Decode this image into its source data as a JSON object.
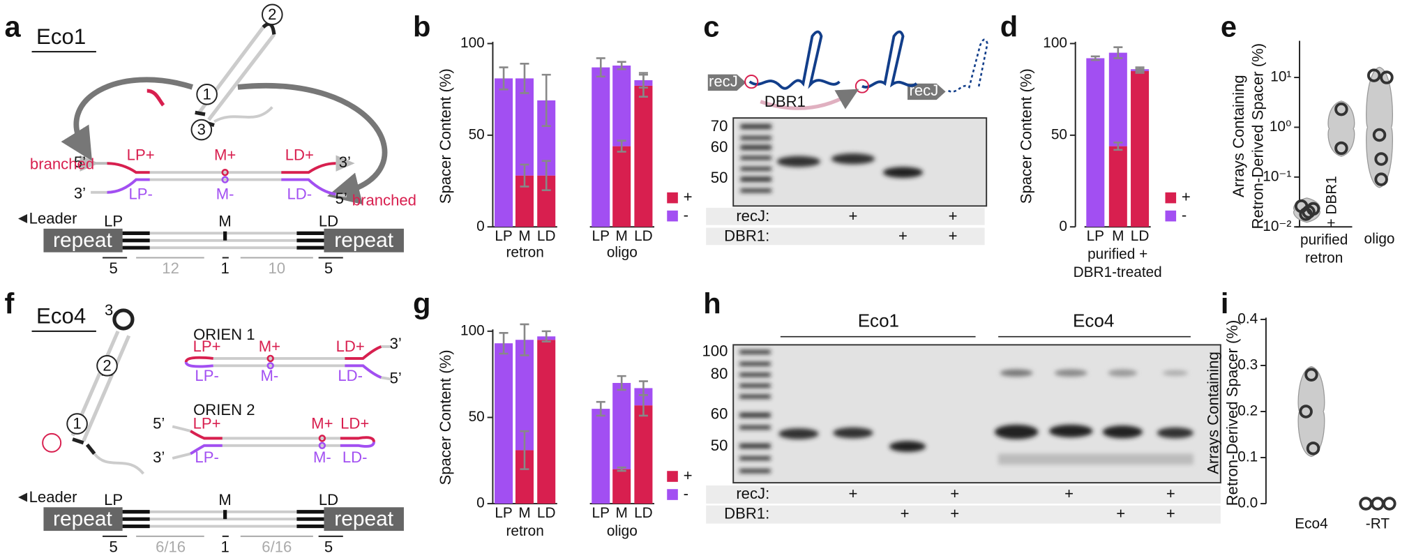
{
  "panel_labels": [
    "a",
    "b",
    "c",
    "d",
    "e",
    "f",
    "g",
    "h",
    "i"
  ],
  "diagram_a": {
    "title": "Eco1",
    "circles": [
      "1",
      "2",
      "3"
    ],
    "top": [
      "LP+",
      "M+",
      "LD+"
    ],
    "bottom": [
      "LP-",
      "M-",
      "LD-"
    ],
    "ends": [
      "5’",
      "3’",
      "3’",
      "5’"
    ],
    "branched": [
      "branched",
      "branched"
    ],
    "leader": "Leader",
    "repeats": [
      "repeat",
      "repeat"
    ],
    "regions": [
      "LP",
      "M",
      "LD"
    ],
    "lengths": [
      "5",
      "12",
      "1",
      "10",
      "5"
    ]
  },
  "diagram_f": {
    "title": "Eco4",
    "circles": [
      "1",
      "2",
      "3"
    ],
    "orientations": [
      {
        "name": "ORIEN 1",
        "top": [
          "LP+",
          "M+",
          "LD+"
        ],
        "bottom": [
          "LP-",
          "M-",
          "LD-"
        ],
        "ends": [
          "3’",
          "5’"
        ]
      },
      {
        "name": "ORIEN 2",
        "top": [
          "LP+",
          "M+",
          "LD+"
        ],
        "bottom": [
          "LP-",
          "M-",
          "LD-"
        ],
        "ends": [
          "5’",
          "3’"
        ]
      }
    ],
    "leader": "Leader",
    "repeats": [
      "repeat",
      "repeat"
    ],
    "regions": [
      "LP",
      "M",
      "LD"
    ],
    "lengths": [
      "5",
      "6/16",
      "1",
      "6/16",
      "5"
    ]
  },
  "gel_c": {
    "schematic": [
      "recJ",
      "DBR1",
      "recJ"
    ],
    "ladder": [
      "70",
      "60",
      "50"
    ],
    "rows": [
      {
        "label": "recJ:",
        "lanes": [
          null,
          "+",
          null,
          "+"
        ]
      },
      {
        "label": "DBR1:",
        "lanes": [
          null,
          null,
          "+",
          "+"
        ]
      }
    ]
  },
  "gel_h": {
    "groups": [
      "Eco1",
      "Eco4"
    ],
    "ladder": [
      "100",
      "80",
      "60",
      "50"
    ],
    "rows": [
      {
        "label": "recJ:",
        "lanes": [
          null,
          "+",
          null,
          "+",
          null,
          "+",
          null,
          "+"
        ]
      },
      {
        "label": "DBR1:",
        "lanes": [
          null,
          null,
          "+",
          "+",
          null,
          null,
          "+",
          "+"
        ]
      }
    ]
  },
  "chart_data": [
    {
      "type": "bar",
      "ylabel": "Spacer Content (%)",
      "categories": [
        "LP",
        "M",
        "LD",
        "LP",
        "M",
        "LD"
      ],
      "groups": [
        [
          "retron"
        ],
        [
          "oligo"
        ]
      ],
      "series": [
        {
          "name": "+",
          "color": "#d81f4f",
          "values": [
            0,
            28,
            28,
            0,
            44,
            77
          ],
          "errors": [
            null,
            6,
            8,
            null,
            3,
            6
          ]
        },
        {
          "name": "-",
          "color": "#a24ff2",
          "values": [
            81,
            53,
            41,
            87,
            44,
            3
          ],
          "errors": [
            6,
            8,
            14,
            5,
            2,
            4
          ]
        }
      ],
      "ylim": [
        0,
        100
      ],
      "yticks": [
        0,
        50,
        100
      ]
    },
    {
      "type": "bar",
      "ylabel": "Spacer Content (%)",
      "categories": [
        "LP",
        "M",
        "LD"
      ],
      "groups": [
        [
          "purified +",
          "DBR1-treated"
        ]
      ],
      "series": [
        {
          "name": "+",
          "color": "#d81f4f",
          "values": [
            0,
            44,
            85
          ],
          "errors": [
            null,
            2,
            1
          ]
        },
        {
          "name": "-",
          "color": "#a24ff2",
          "values": [
            92,
            51,
            1
          ],
          "errors": [
            1,
            3,
            1
          ]
        }
      ],
      "ylim": [
        0,
        100
      ],
      "yticks": [
        0,
        50,
        100
      ]
    },
    {
      "type": "violin",
      "ylabel": [
        "Arrays Containing",
        "Retron-Derived Spacer (%)"
      ],
      "categories": [
        null,
        "+ DBR1",
        "oligo"
      ],
      "groups": [
        [
          "purified",
          "retron"
        ]
      ],
      "values": [
        [
          0.026,
          0.02,
          0.023,
          0.018
        ],
        [
          2.3,
          0.38
        ],
        [
          11,
          10,
          0.7,
          0.23,
          0.09
        ]
      ],
      "yscale": "log",
      "ylim": [
        0.01,
        50
      ],
      "color": "#cccccc",
      "yticks": [
        {
          "value": 0.01,
          "label": "10⁻²"
        },
        {
          "value": 0.1,
          "label": "10⁻¹"
        },
        {
          "value": 1,
          "label": "10⁰"
        },
        {
          "value": 10,
          "label": "10¹"
        }
      ]
    },
    {
      "type": "bar",
      "ylabel": "Spacer Content (%)",
      "categories": [
        "LP",
        "M",
        "LD",
        "LP",
        "M",
        "LD"
      ],
      "groups": [
        [
          "retron"
        ],
        [
          "oligo"
        ]
      ],
      "series": [
        {
          "name": "+",
          "color": "#d81f4f",
          "values": [
            0,
            31,
            95,
            0,
            20,
            57
          ],
          "errors": [
            null,
            11,
            null,
            null,
            1,
            6
          ]
        },
        {
          "name": "-",
          "color": "#a24ff2",
          "values": [
            93,
            64,
            2,
            55,
            50,
            10
          ],
          "errors": [
            6,
            9,
            3,
            4,
            4,
            4
          ]
        }
      ],
      "ylim": [
        0,
        100
      ],
      "yticks": [
        0,
        50,
        100
      ]
    },
    {
      "type": "violin",
      "ylabel": [
        "Arrays Containing",
        "Retron-Derived Spacer (%)"
      ],
      "categories": [
        "Eco4",
        "-RT"
      ],
      "values": [
        [
          0.28,
          0.2,
          0.12
        ],
        [
          0,
          0,
          0
        ]
      ],
      "color": "#cccccc",
      "ylim": [
        0,
        0.4
      ],
      "yticks": [
        {
          "value": 0,
          "label": "0.0"
        },
        0.1,
        0.2,
        0.3,
        0.4
      ]
    }
  ]
}
